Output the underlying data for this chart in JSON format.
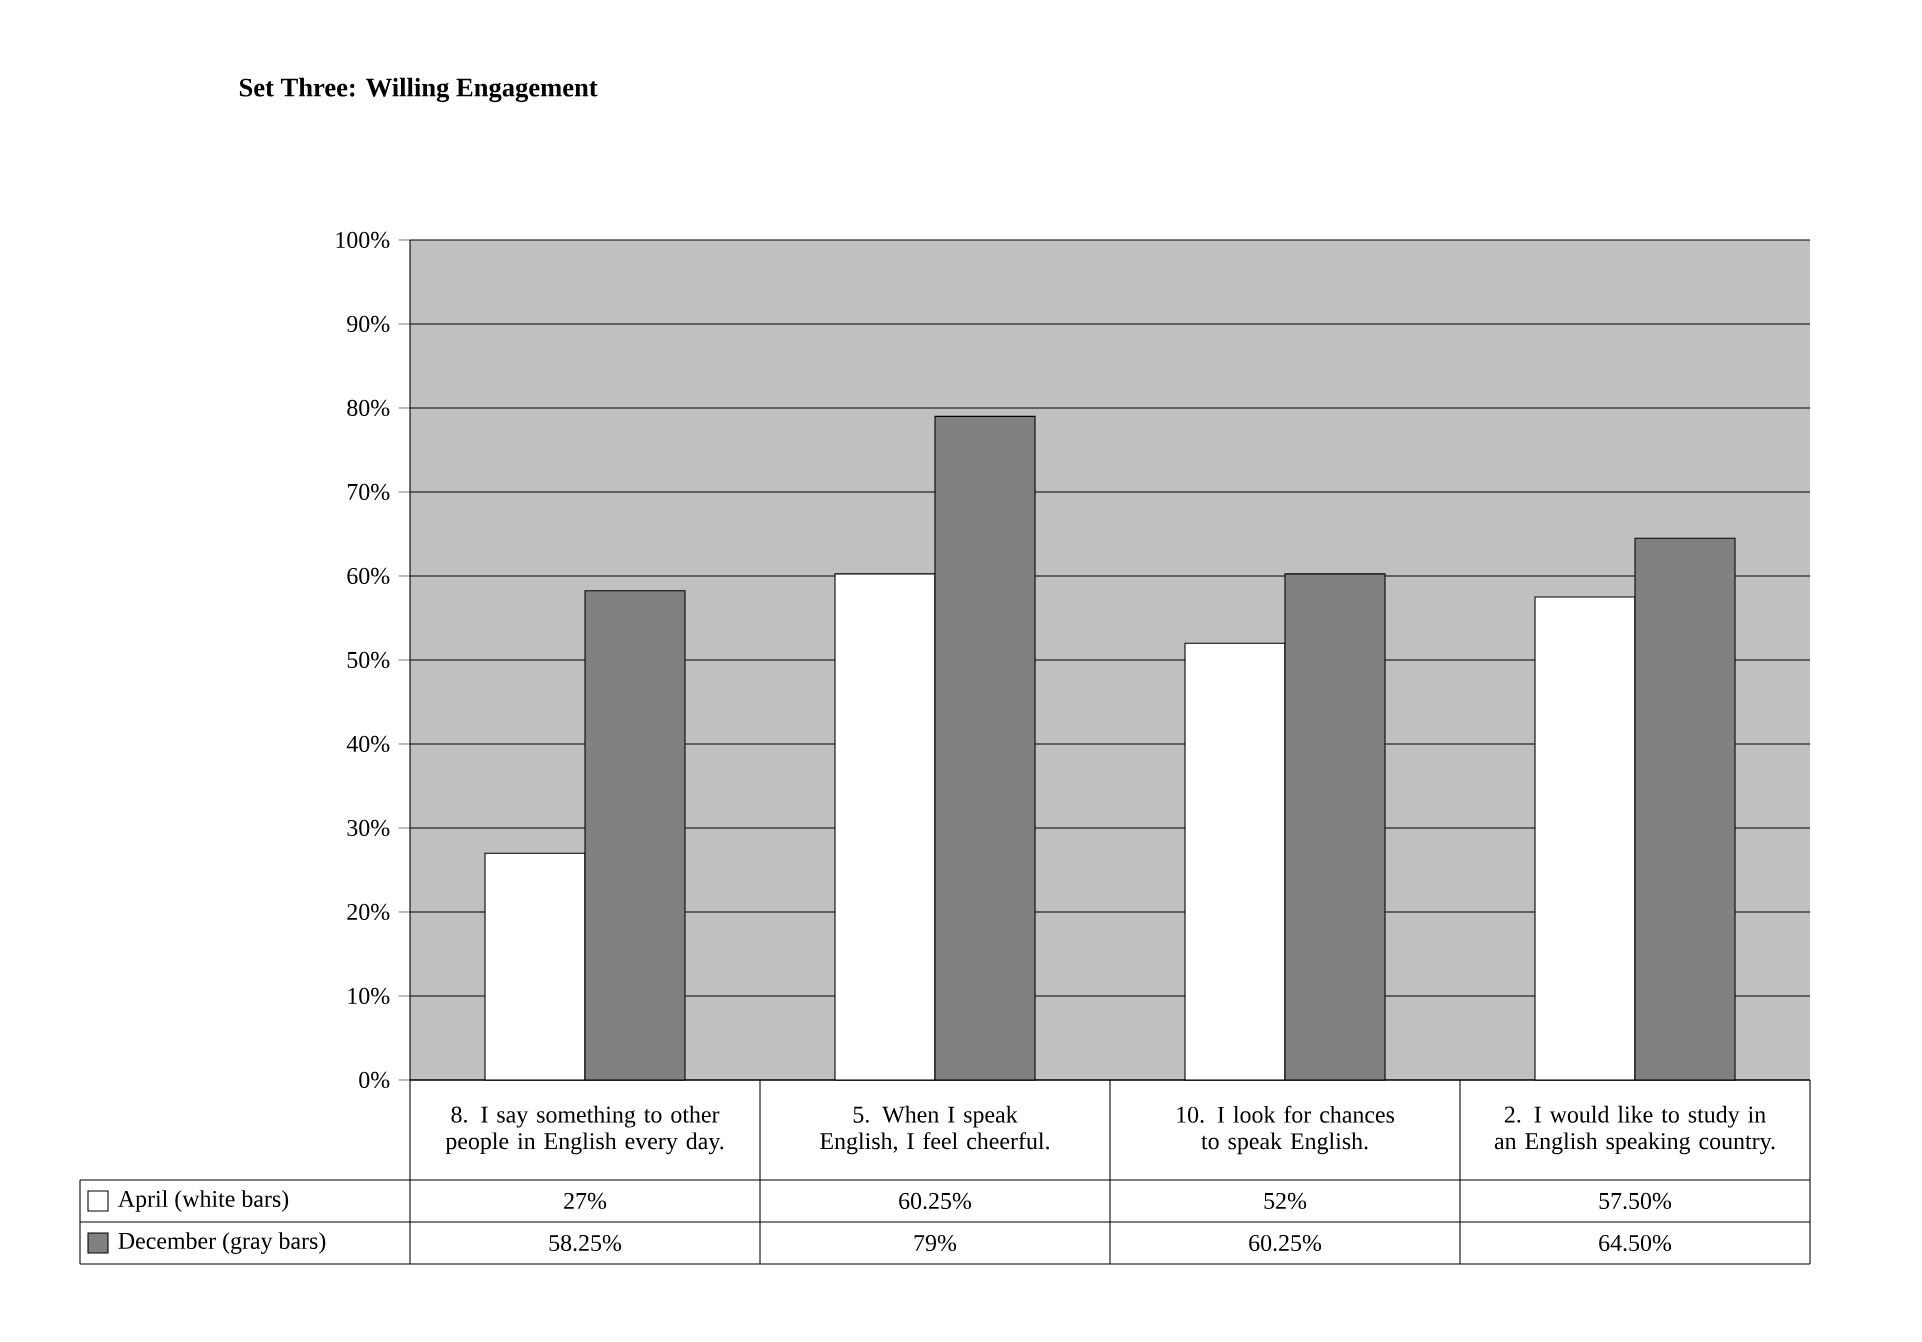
{
  "chart_data": {
    "type": "bar",
    "title": "Set Three: Willing Engagement",
    "categories": [
      "8. I say something to other people in English every day.",
      "5. When I speak English, I feel cheerful.",
      "10. I look for chances to speak English.",
      "2. I would like to study in an English speaking country."
    ],
    "series": [
      {
        "name": "April (white bars)",
        "color": "#ffffff",
        "values": [
          27,
          60.25,
          52,
          57.5
        ],
        "value_labels": [
          "27%",
          "60.25%",
          "52%",
          "57.50%"
        ]
      },
      {
        "name": "December (gray bars)",
        "color": "#808080",
        "values": [
          58.25,
          79,
          60.25,
          64.5
        ],
        "value_labels": [
          "58.25%",
          "79%",
          "60.25%",
          "64.50%"
        ]
      }
    ],
    "ylim": [
      0,
      100
    ],
    "yticks": [
      {
        "value": 0,
        "label": "0%"
      },
      {
        "value": 10,
        "label": "10%"
      },
      {
        "value": 20,
        "label": "20%"
      },
      {
        "value": 30,
        "label": "30%"
      },
      {
        "value": 40,
        "label": "40%"
      },
      {
        "value": 50,
        "label": "50%"
      },
      {
        "value": 60,
        "label": "60%"
      },
      {
        "value": 70,
        "label": "70%"
      },
      {
        "value": 80,
        "label": "80%"
      },
      {
        "value": 90,
        "label": "90%"
      },
      {
        "value": 100,
        "label": "100%"
      }
    ],
    "grid": "y",
    "legend": "bottom"
  }
}
